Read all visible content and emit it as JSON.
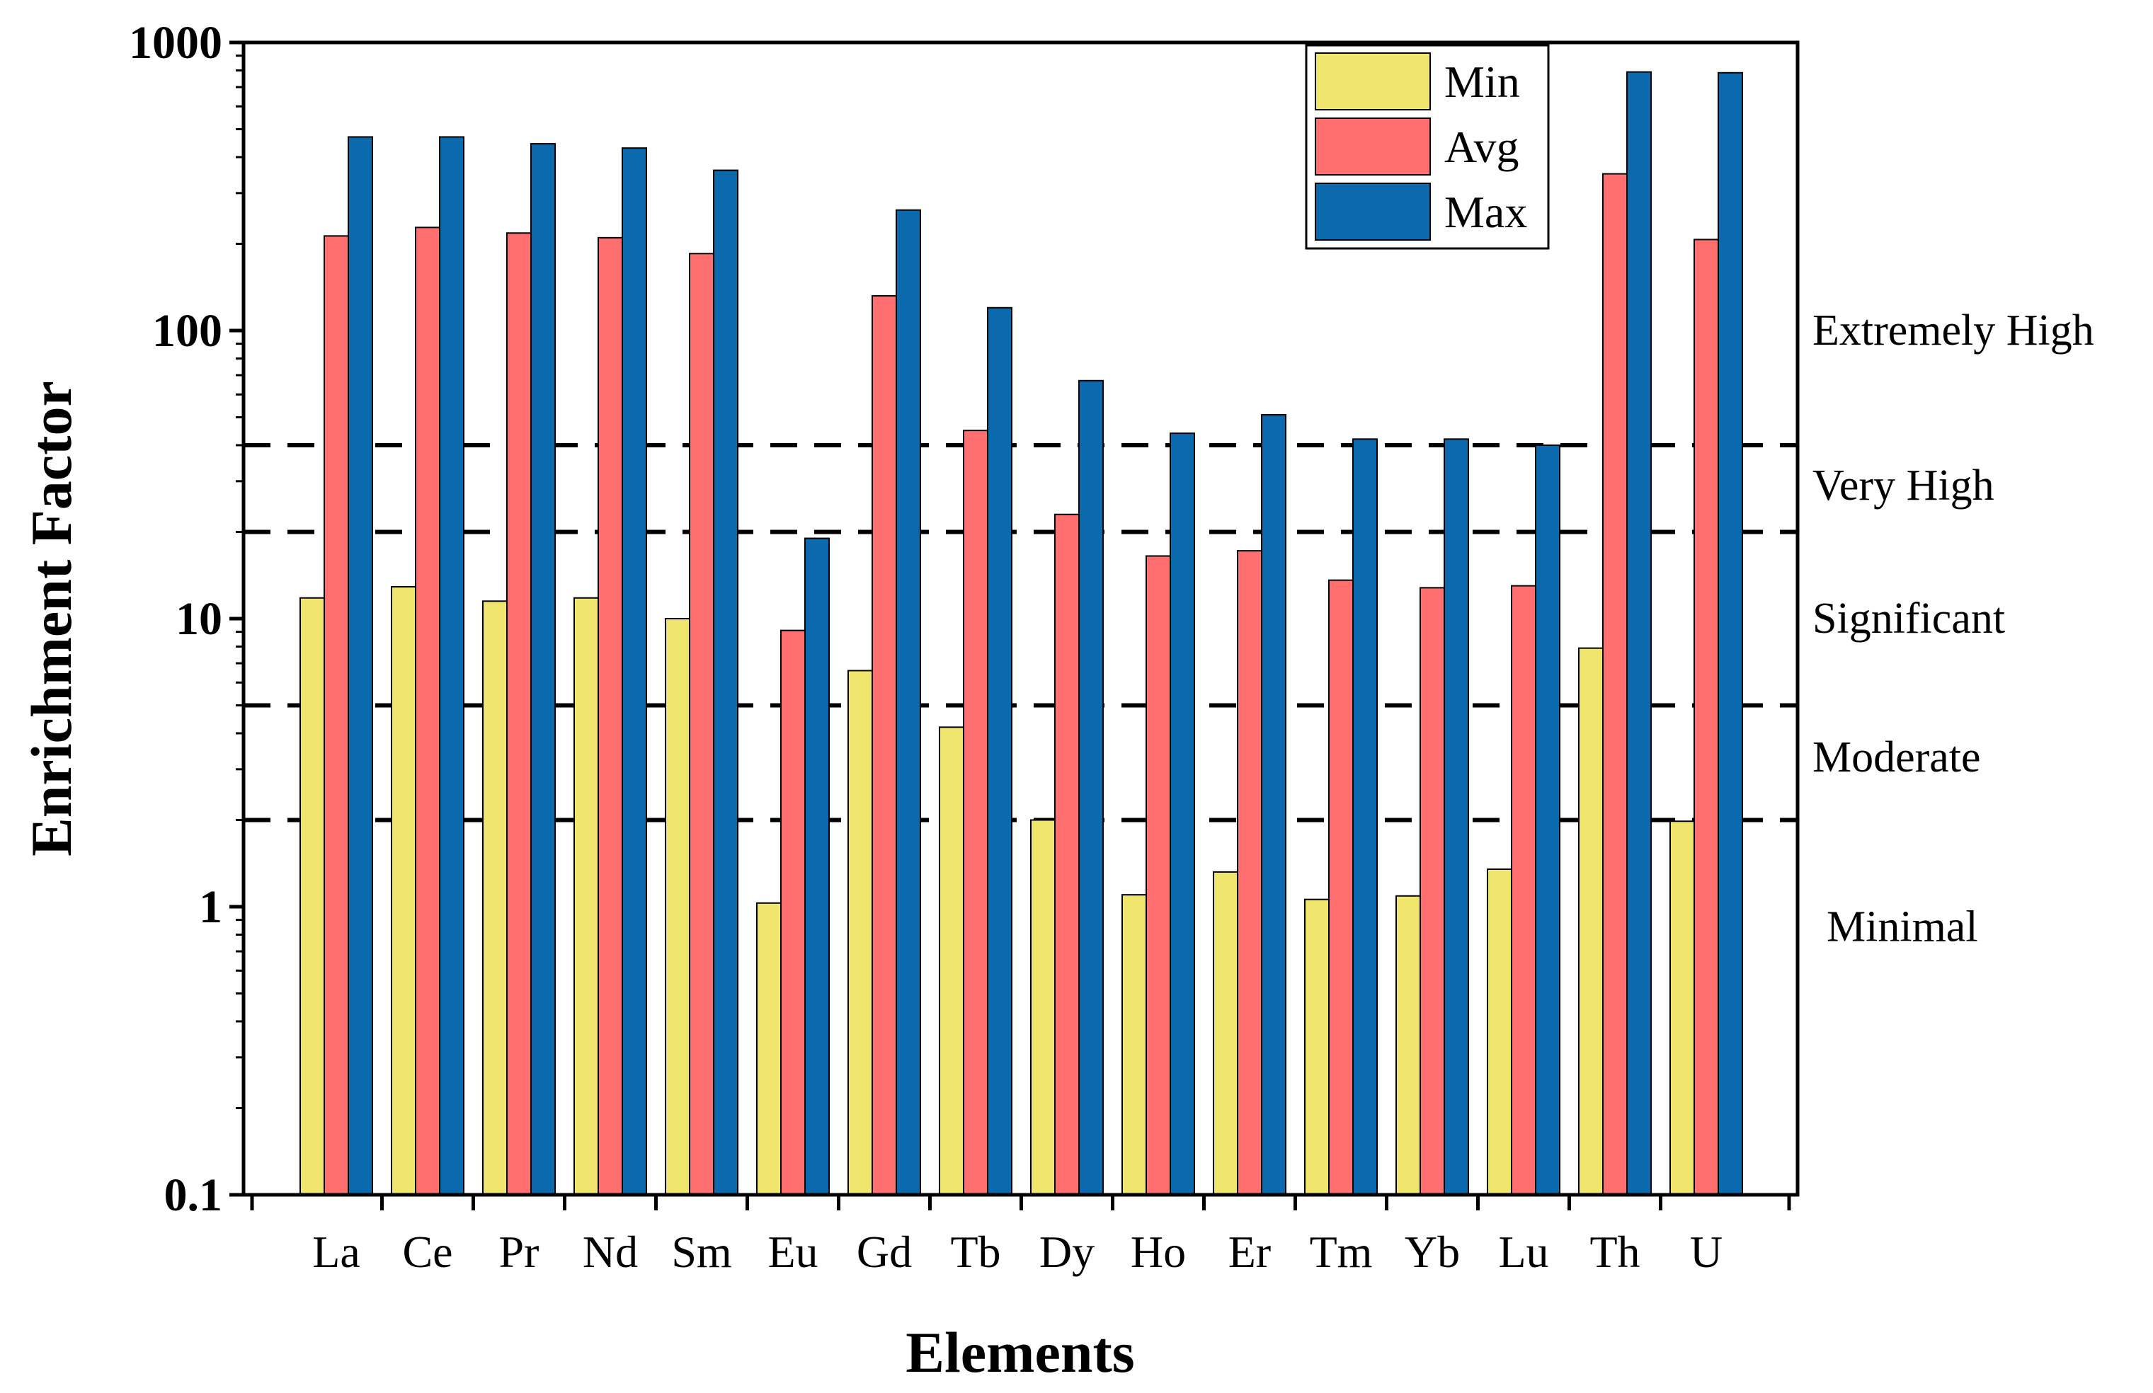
{
  "chart_data": {
    "type": "bar",
    "title": "",
    "xlabel": "Elements",
    "ylabel": "Enrichment Factor",
    "yscale": "log",
    "ylim": [
      0.1,
      1000
    ],
    "yticks": [
      0.1,
      1,
      10,
      100,
      1000
    ],
    "ytick_labels": [
      "0.1",
      "1",
      "10",
      "100",
      "1000"
    ],
    "categories": [
      "La",
      "Ce",
      "Pr",
      "Nd",
      "Sm",
      "Eu",
      "Gd",
      "Tb",
      "Dy",
      "Ho",
      "Er",
      "Tm",
      "Yb",
      "Lu",
      "Th",
      "U"
    ],
    "series": [
      {
        "name": "Min",
        "color": "#f0e66e",
        "values": [
          11.8,
          12.9,
          11.5,
          11.8,
          10.0,
          1.03,
          6.6,
          4.2,
          2.0,
          1.1,
          1.32,
          1.06,
          1.09,
          1.35,
          7.9,
          1.98
        ]
      },
      {
        "name": "Avg",
        "color": "#ff6f6f",
        "values": [
          213,
          228,
          218,
          210,
          185,
          9.1,
          132,
          45,
          23,
          16.5,
          17.2,
          13.6,
          12.8,
          13.0,
          350,
          207
        ]
      },
      {
        "name": "Max",
        "color": "#0a6aad",
        "values": [
          470,
          470,
          445,
          430,
          360,
          19,
          262,
          120,
          67,
          44,
          51,
          42,
          42,
          40,
          790,
          785
        ]
      }
    ],
    "thresholds": [
      2,
      5,
      20,
      40
    ],
    "zones": [
      {
        "label": "Extremely High",
        "at": 100
      },
      {
        "label": "Very High",
        "at": 29
      },
      {
        "label": "Significant",
        "at": 10
      },
      {
        "label": "Moderate",
        "at": 3.3
      },
      {
        "label": "Minimal",
        "at": 0.85
      }
    ],
    "legend_position": "top-right",
    "grid": false
  }
}
